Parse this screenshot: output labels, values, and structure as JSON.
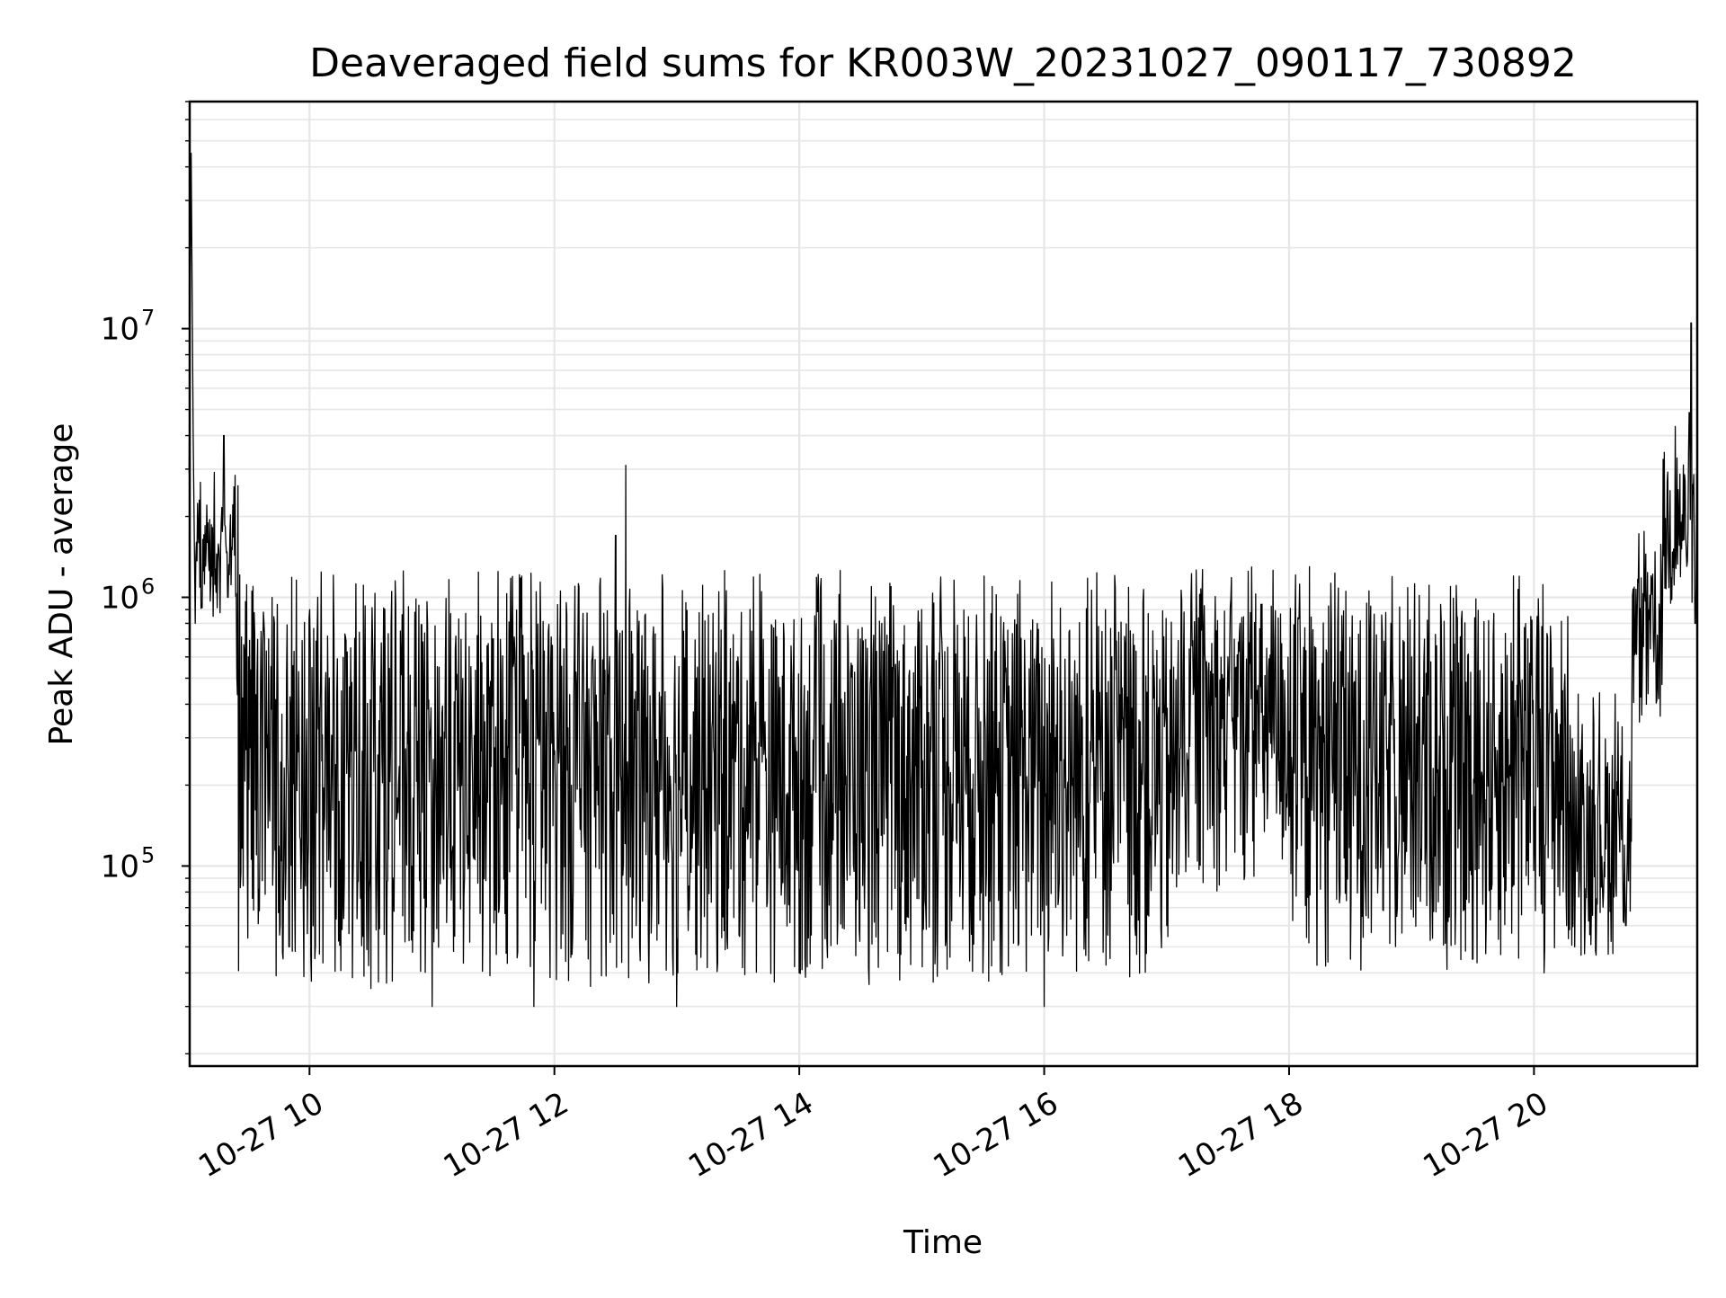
{
  "chart_data": {
    "type": "line",
    "title": "Deaveraged field sums for KR003W_20231027_090117_730892",
    "xlabel": "Time",
    "ylabel": "Peak ADU - average",
    "y_scale": "log",
    "grid": "on (major and minor, light gray)",
    "legend": "none",
    "xlim": [
      "2023-10-27 09:01:17",
      "2023-10-27 21:20:00"
    ],
    "ylim": [
      18000,
      70000000
    ],
    "x_ticks": [
      {
        "value": "2023-10-27 10:00",
        "label": "10-27 10"
      },
      {
        "value": "2023-10-27 12:00",
        "label": "10-27 12"
      },
      {
        "value": "2023-10-27 14:00",
        "label": "10-27 14"
      },
      {
        "value": "2023-10-27 16:00",
        "label": "10-27 16"
      },
      {
        "value": "2023-10-27 18:00",
        "label": "10-27 18"
      },
      {
        "value": "2023-10-27 20:00",
        "label": "10-27 20"
      }
    ],
    "y_ticks": [
      {
        "value": 100000,
        "base": "10",
        "exp": "5"
      },
      {
        "value": 1000000,
        "base": "10",
        "exp": "6"
      },
      {
        "value": 10000000,
        "base": "10",
        "exp": "7"
      }
    ],
    "series": [
      {
        "color": "#000000",
        "points": [
          [
            "2023-10-27 09:01",
            2900000
          ],
          [
            "2023-10-27 09:02",
            45000000
          ],
          [
            "2023-10-27 09:03",
            4000000
          ],
          [
            "2023-10-27 09:04",
            800000
          ],
          [
            "2023-10-27 09:06",
            2300000
          ],
          [
            "2023-10-27 09:10",
            1600000
          ],
          [
            "2023-10-27 09:15",
            1400000
          ],
          [
            "2023-10-27 09:18",
            4000000
          ],
          [
            "2023-10-27 09:20",
            1000000
          ],
          [
            "2023-10-27 09:25",
            2600000
          ],
          [
            "2023-10-27 09:30",
            600000
          ],
          [
            "2023-10-27 09:34",
            110000
          ],
          [
            "2023-10-27 09:40",
            700000
          ],
          [
            "2023-10-27 09:50",
            50000
          ],
          [
            "2023-10-27 10:00",
            900000
          ],
          [
            "2023-10-27 10:30",
            35000
          ],
          [
            "2023-10-27 10:40",
            800000
          ],
          [
            "2023-10-27 11:00",
            30000
          ],
          [
            "2023-10-27 11:30",
            700000
          ],
          [
            "2023-10-27 11:50",
            30000
          ],
          [
            "2023-10-27 12:10",
            1100000
          ],
          [
            "2023-10-27 12:30",
            1700000
          ],
          [
            "2023-10-27 12:35",
            3100000
          ],
          [
            "2023-10-27 12:40",
            60000
          ],
          [
            "2023-10-27 13:00",
            30000
          ],
          [
            "2023-10-27 13:30",
            600000
          ],
          [
            "2023-10-27 14:00",
            40000
          ],
          [
            "2023-10-27 14:30",
            700000
          ],
          [
            "2023-10-27 15:00",
            900000
          ],
          [
            "2023-10-27 15:30",
            40000
          ],
          [
            "2023-10-27 16:00",
            30000
          ],
          [
            "2023-10-27 16:30",
            900000
          ],
          [
            "2023-10-27 17:00",
            60000
          ],
          [
            "2023-10-27 17:30",
            600000
          ],
          [
            "2023-10-27 17:40",
            1250000
          ],
          [
            "2023-10-27 18:10",
            1300000
          ],
          [
            "2023-10-27 18:30",
            45000
          ],
          [
            "2023-10-27 19:00",
            600000
          ],
          [
            "2023-10-27 19:30",
            45000
          ],
          [
            "2023-10-27 19:50",
            1200000
          ],
          [
            "2023-10-27 20:20",
            50000
          ],
          [
            "2023-10-27 20:45",
            60000
          ],
          [
            "2023-10-27 20:55",
            400000
          ],
          [
            "2023-10-27 21:05",
            1500000
          ],
          [
            "2023-10-27 21:10",
            3300000
          ],
          [
            "2023-10-27 21:17",
            10500000
          ],
          [
            "2023-10-27 21:19",
            800000
          ]
        ]
      }
    ]
  }
}
